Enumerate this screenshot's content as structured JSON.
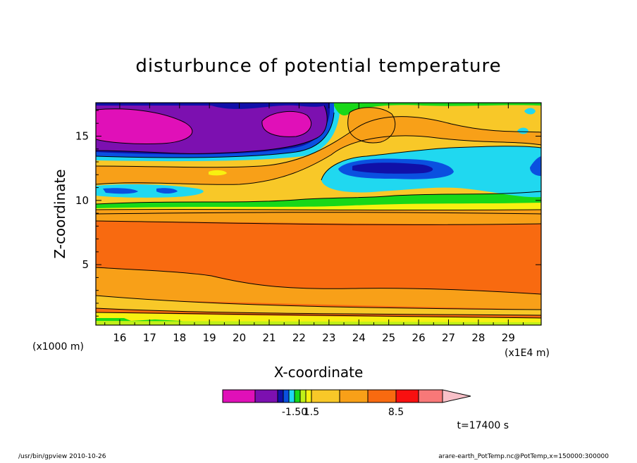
{
  "chart_data": {
    "type": "heatmap",
    "title": "disturbunce of potential temperature",
    "xlabel": "X-coordinate",
    "ylabel": "Z-coordinate",
    "x_unit_left": "(x1000 m)",
    "x_unit_right": "(x1E4 m)",
    "xlim": [
      15.2,
      30.1
    ],
    "ylim": [
      0.3,
      17.6
    ],
    "x_ticks": [
      16,
      17,
      18,
      19,
      20,
      21,
      22,
      23,
      24,
      25,
      26,
      27,
      28,
      29
    ],
    "y_ticks": [
      5,
      10,
      15
    ],
    "colorbar": {
      "colors": [
        "#e010b8",
        "#7c10b0",
        "#1010a8",
        "#0a50e0",
        "#20d8f0",
        "#18d818",
        "#c0f018",
        "#f8f010",
        "#f8c828",
        "#f8a018",
        "#f86a10",
        "#f81010",
        "#f87878",
        "#f8c0c8"
      ],
      "labels": [
        "-1.50",
        "1.5",
        "8.5"
      ],
      "extend": "max"
    },
    "time_label": "t=17400 s",
    "footer_left": "/usr/bin/gpview   2010-10-26",
    "footer_right": "arare-earth_PotTemp.nc@PotTemp,x=150000:300000"
  }
}
